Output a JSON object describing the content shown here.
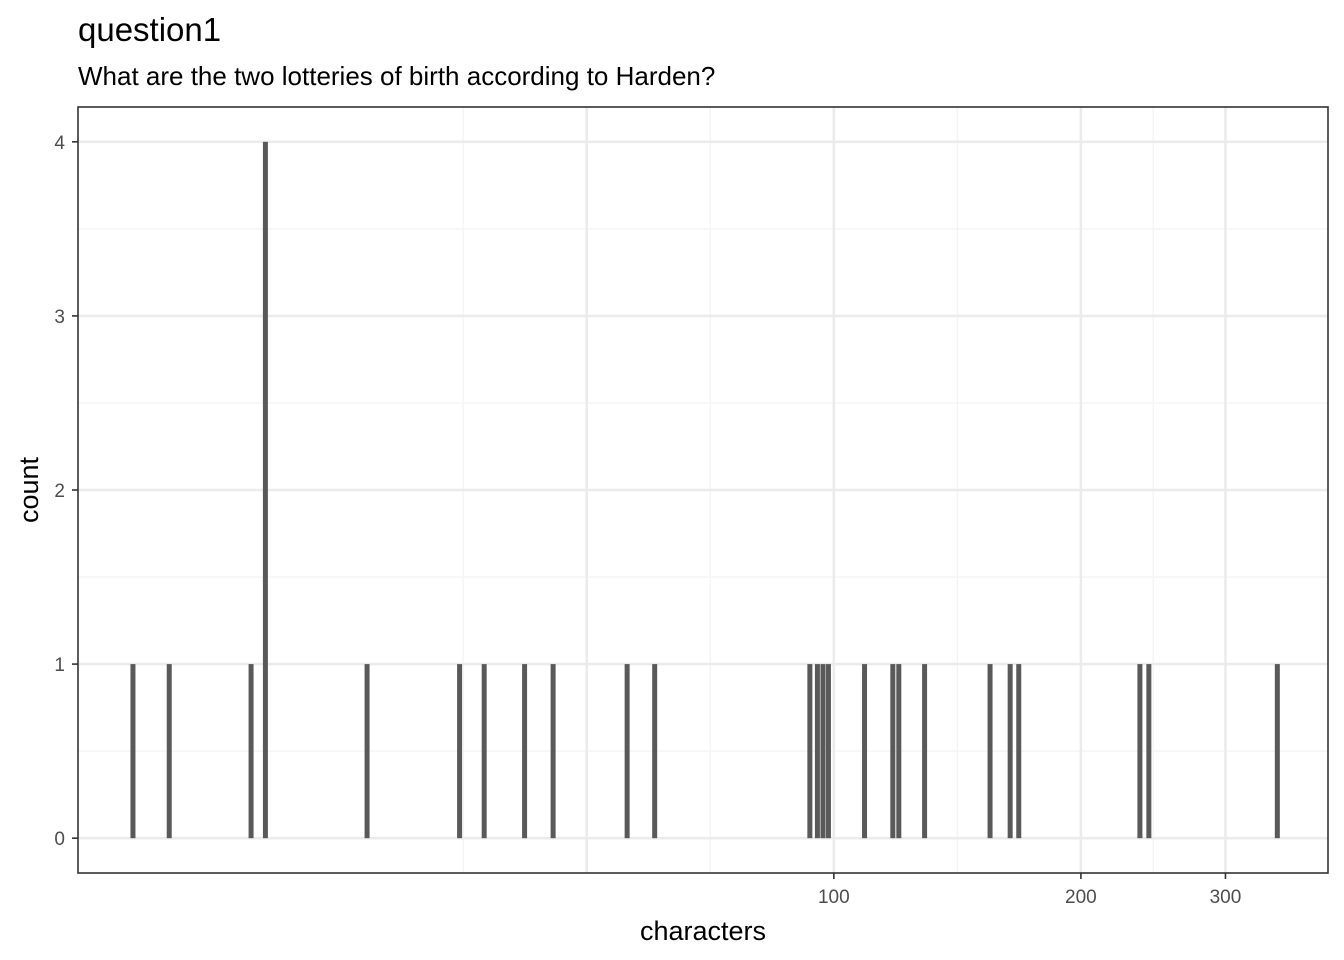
{
  "chart_data": {
    "type": "bar",
    "title": "question1",
    "subtitle": "What are the two lotteries of birth according to Harden?",
    "xlabel": "characters",
    "ylabel": "count",
    "x_scale": "log10",
    "xlim": [
      12,
      400
    ],
    "ylim": [
      -0.2,
      4.2
    ],
    "x_ticks": [
      100,
      200,
      300
    ],
    "x_tick_labels": [
      "100",
      "200",
      "300"
    ],
    "y_ticks": [
      0,
      1,
      2,
      3,
      4
    ],
    "y_tick_labels": [
      "0",
      "1",
      "2",
      "3",
      "4"
    ],
    "grid": true,
    "bar_color": "#595959",
    "series": [
      {
        "values": [
          {
            "x": 14,
            "count": 1
          },
          {
            "x": 15.5,
            "count": 1
          },
          {
            "x": 19.5,
            "count": 1
          },
          {
            "x": 20.3,
            "count": 4
          },
          {
            "x": 27,
            "count": 1
          },
          {
            "x": 35,
            "count": 1
          },
          {
            "x": 37.5,
            "count": 1
          },
          {
            "x": 42,
            "count": 1
          },
          {
            "x": 45.5,
            "count": 1
          },
          {
            "x": 56,
            "count": 1
          },
          {
            "x": 60.5,
            "count": 1
          },
          {
            "x": 93.5,
            "count": 1
          },
          {
            "x": 95.5,
            "count": 1
          },
          {
            "x": 97,
            "count": 1
          },
          {
            "x": 98.5,
            "count": 1
          },
          {
            "x": 109,
            "count": 1
          },
          {
            "x": 118,
            "count": 1
          },
          {
            "x": 120,
            "count": 1
          },
          {
            "x": 129,
            "count": 1
          },
          {
            "x": 155,
            "count": 1
          },
          {
            "x": 164,
            "count": 1
          },
          {
            "x": 168,
            "count": 1
          },
          {
            "x": 236,
            "count": 1
          },
          {
            "x": 242,
            "count": 1
          },
          {
            "x": 347,
            "count": 1
          }
        ]
      }
    ]
  },
  "colors": {
    "grid_major": "#ebebeb",
    "grid_minor": "#f4f4f4",
    "panel_border": "#333333",
    "tick_text": "#4d4d4d"
  }
}
